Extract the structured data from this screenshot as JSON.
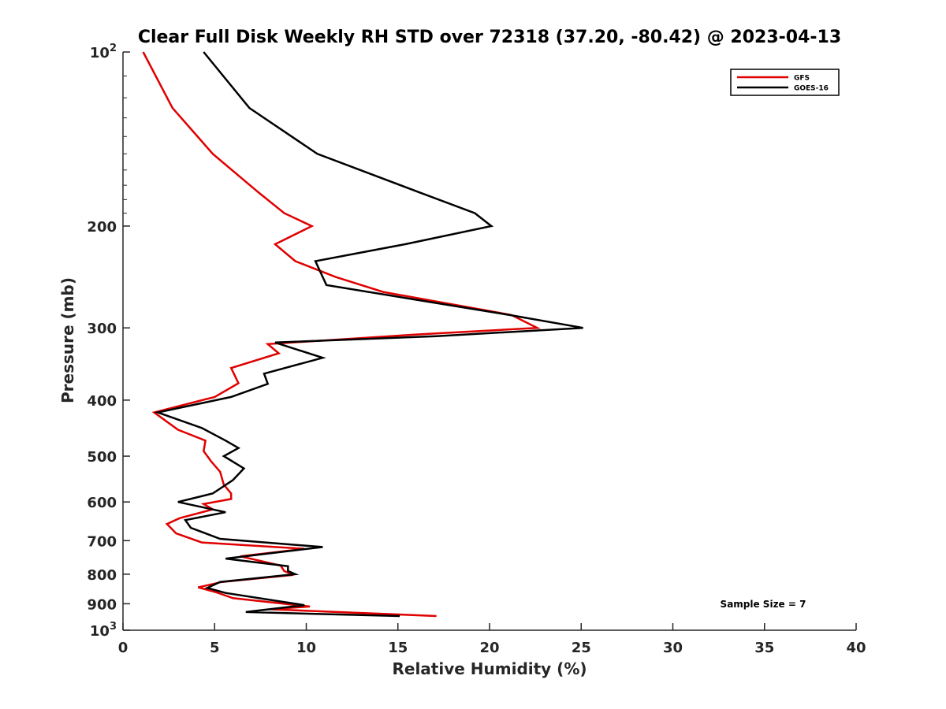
{
  "chart_data": {
    "type": "line",
    "title": "Clear Full Disk Weekly RH STD over 72318 (37.20, -80.42) @ 2023-04-13",
    "xlabel": "Relative Humidity (%)",
    "ylabel": "Pressure (mb)",
    "xlim": [
      0,
      40
    ],
    "ylim": [
      100,
      1000
    ],
    "y_scale": "log",
    "y_reversed": true,
    "x_ticks": [
      0,
      5,
      10,
      15,
      20,
      25,
      30,
      35,
      40
    ],
    "y_ticks": [
      {
        "value": 100,
        "label": "10",
        "sup": "2"
      },
      {
        "value": 200,
        "label": "200",
        "sup": ""
      },
      {
        "value": 300,
        "label": "300",
        "sup": ""
      },
      {
        "value": 400,
        "label": "400",
        "sup": ""
      },
      {
        "value": 500,
        "label": "500",
        "sup": ""
      },
      {
        "value": 600,
        "label": "600",
        "sup": ""
      },
      {
        "value": 700,
        "label": "700",
        "sup": ""
      },
      {
        "value": 800,
        "label": "800",
        "sup": ""
      },
      {
        "value": 900,
        "label": "900",
        "sup": ""
      },
      {
        "value": 1000,
        "label": "10",
        "sup": "3"
      }
    ],
    "grid": false,
    "legend_position": "top-right",
    "annotation": "Sample Size = 7",
    "series": [
      {
        "name": "GFS",
        "color": "#e00000",
        "points": [
          [
            1.1,
            100
          ],
          [
            2.7,
            125
          ],
          [
            4.9,
            150
          ],
          [
            7.4,
            175
          ],
          [
            8.8,
            190
          ],
          [
            10.3,
            200
          ],
          [
            8.3,
            215
          ],
          [
            9.4,
            230
          ],
          [
            11.6,
            245
          ],
          [
            14.2,
            260
          ],
          [
            21.2,
            285
          ],
          [
            22.6,
            300
          ],
          [
            16.0,
            308
          ],
          [
            7.9,
            320
          ],
          [
            8.5,
            332
          ],
          [
            5.9,
            352
          ],
          [
            6.3,
            374
          ],
          [
            5.0,
            395
          ],
          [
            1.7,
            420
          ],
          [
            3.0,
            450
          ],
          [
            4.5,
            470
          ],
          [
            4.4,
            490
          ],
          [
            4.8,
            510
          ],
          [
            5.3,
            532
          ],
          [
            5.5,
            560
          ],
          [
            5.9,
            580
          ],
          [
            5.9,
            593
          ],
          [
            4.4,
            605
          ],
          [
            4.9,
            618
          ],
          [
            3.1,
            640
          ],
          [
            2.4,
            655
          ],
          [
            2.9,
            680
          ],
          [
            4.3,
            705
          ],
          [
            9.9,
            723
          ],
          [
            6.4,
            745
          ],
          [
            8.6,
            773
          ],
          [
            8.8,
            790
          ],
          [
            9.3,
            802
          ],
          [
            5.4,
            825
          ],
          [
            4.1,
            843
          ],
          [
            5.1,
            860
          ],
          [
            6.0,
            880
          ],
          [
            10.2,
            910
          ],
          [
            8.0,
            920
          ],
          [
            17.1,
            945
          ]
        ]
      },
      {
        "name": "GOES-16",
        "color": "#000000",
        "points": [
          [
            4.4,
            100
          ],
          [
            6.9,
            125
          ],
          [
            10.6,
            150
          ],
          [
            16.2,
            175
          ],
          [
            19.2,
            190
          ],
          [
            20.1,
            200
          ],
          [
            15.4,
            215
          ],
          [
            10.5,
            230
          ],
          [
            11.1,
            253
          ],
          [
            21.1,
            285
          ],
          [
            25.1,
            300
          ],
          [
            17.1,
            310
          ],
          [
            8.3,
            318
          ],
          [
            10.9,
            338
          ],
          [
            7.7,
            360
          ],
          [
            7.9,
            375
          ],
          [
            5.9,
            395
          ],
          [
            1.9,
            420
          ],
          [
            4.3,
            447
          ],
          [
            5.6,
            470
          ],
          [
            6.3,
            484
          ],
          [
            5.5,
            500
          ],
          [
            6.6,
            525
          ],
          [
            6.0,
            550
          ],
          [
            4.9,
            580
          ],
          [
            3.0,
            600
          ],
          [
            5.6,
            625
          ],
          [
            3.4,
            645
          ],
          [
            3.7,
            665
          ],
          [
            5.3,
            695
          ],
          [
            10.9,
            718
          ],
          [
            5.6,
            752
          ],
          [
            9.0,
            775
          ],
          [
            9.0,
            790
          ],
          [
            9.4,
            800
          ],
          [
            5.3,
            825
          ],
          [
            4.6,
            845
          ],
          [
            5.6,
            862
          ],
          [
            9.9,
            905
          ],
          [
            6.7,
            930
          ],
          [
            15.1,
            945
          ]
        ]
      }
    ]
  }
}
